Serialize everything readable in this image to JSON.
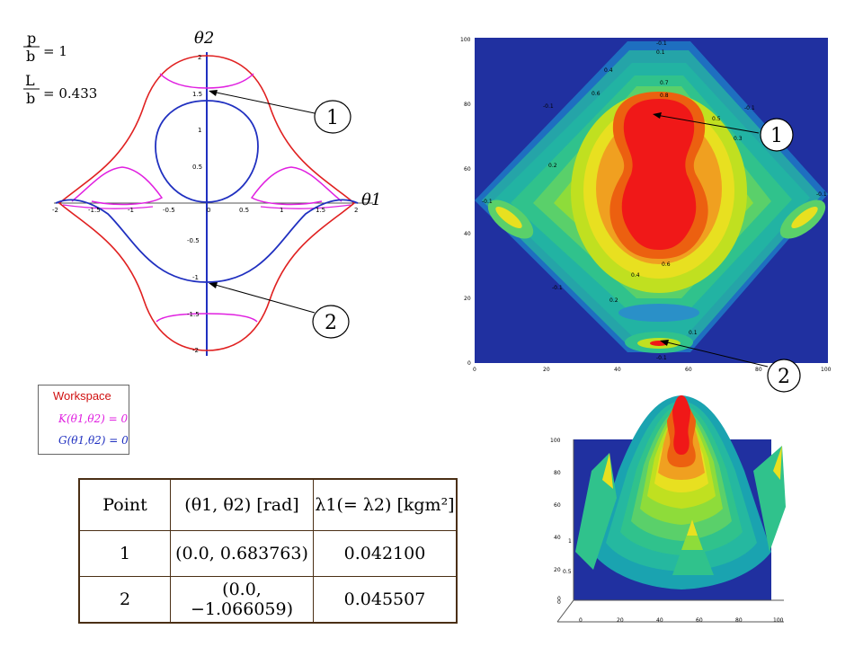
{
  "params": {
    "p_label": "p",
    "b_label": "b",
    "p_value": "= 1",
    "L_label": "L",
    "L_value": "= 0.433"
  },
  "workspace_plot": {
    "y_axis_label": "θ2",
    "x_axis_label": "θ1",
    "x_ticks": [
      "-2",
      "-1.5",
      "-1",
      "-0.5",
      "0",
      "0.5",
      "1",
      "1.5",
      "2"
    ],
    "y_ticks": [
      "2",
      "1.5",
      "1",
      "0.5",
      "0",
      "-0.5",
      "-1",
      "-1.5",
      "-2"
    ],
    "colors": {
      "workspace_boundary": "#e02020",
      "K_curve": "#e020e0",
      "G_curve": "#2030c0",
      "axis": "#2030c0"
    }
  },
  "callouts": {
    "one": "1",
    "two": "2"
  },
  "contour_plot": {
    "x_ticks": [
      "0",
      "20",
      "40",
      "60",
      "80",
      "100"
    ],
    "y_ticks": [
      "100",
      "80",
      "60",
      "40",
      "20",
      "0"
    ],
    "contour_labels": [
      "0.1",
      "0.2",
      "0.3",
      "0.4",
      "0.5",
      "0.6",
      "0.7",
      "0.8",
      "-0.1"
    ]
  },
  "surface_plot": {
    "z_ticks": [
      "100",
      "80",
      "60",
      "40",
      "20",
      "0"
    ],
    "x_ticks": [
      "0",
      "20",
      "40",
      "60",
      "80",
      "100"
    ],
    "side_ticks": [
      "1",
      "0.5",
      "0"
    ]
  },
  "legend": {
    "title": "Workspace",
    "K_equation": "K(θ1,θ2) = 0",
    "G_equation": "G(θ1,θ2) = 0"
  },
  "table": {
    "headers": [
      "Point",
      "(θ1, θ2) [rad]",
      "λ1(= λ2) [kgm²]"
    ],
    "rows": [
      {
        "point": "1",
        "coords": "(0.0, 0.683763)",
        "lambda": "0.042100"
      },
      {
        "point": "2",
        "coords": "(0.0, −1.066059)",
        "lambda": "0.045507"
      }
    ]
  }
}
